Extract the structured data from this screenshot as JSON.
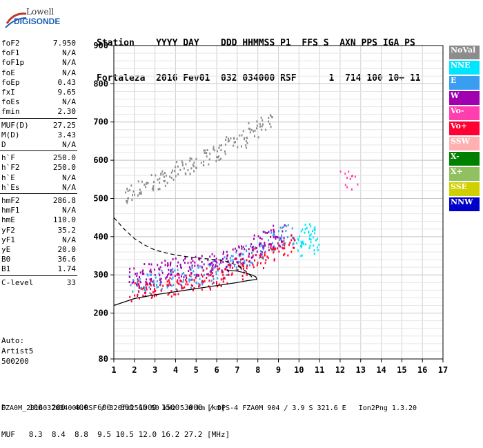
{
  "logo": {
    "line1": "Lowell",
    "line2": "DIGISONDE"
  },
  "header": {
    "labels_line": "Station    YYYY DAY    DDD HHMMSS P1  FFS S  AXN PPS IGA PS",
    "values_line": "Fortaleza  2016 Fev01  032 034000 RSF      1  714 100 10+ 11"
  },
  "params": [
    {
      "k": "foF2",
      "v": "7.950"
    },
    {
      "k": "foF1",
      "v": "N/A"
    },
    {
      "k": "foF1p",
      "v": "N/A"
    },
    {
      "k": "foE",
      "v": "N/A"
    },
    {
      "k": "foEp",
      "v": "0.43"
    },
    {
      "k": "fxI",
      "v": "9.65"
    },
    {
      "k": "foEs",
      "v": "N/A"
    },
    {
      "k": "fmin",
      "v": "2.30"
    },
    {
      "k": "MUF(D)",
      "v": "27.25"
    },
    {
      "k": "M(D)",
      "v": "3.43"
    },
    {
      "k": "D",
      "v": "N/A"
    },
    {
      "k": "h`F",
      "v": "250.0"
    },
    {
      "k": "h`F2",
      "v": "250.0"
    },
    {
      "k": "h`E",
      "v": "N/A"
    },
    {
      "k": "h`Es",
      "v": "N/A"
    },
    {
      "k": "hmF2",
      "v": "286.8"
    },
    {
      "k": "hmF1",
      "v": "N/A"
    },
    {
      "k": "hmE",
      "v": "110.0"
    },
    {
      "k": "yF2",
      "v": "35.2"
    },
    {
      "k": "yF1",
      "v": "N/A"
    },
    {
      "k": "yE",
      "v": "20.0"
    },
    {
      "k": "B0",
      "v": "36.6"
    },
    {
      "k": "B1",
      "v": "1.74"
    },
    {
      "k": "C-level",
      "v": "33"
    }
  ],
  "auto": {
    "line1": "Auto:",
    "line2": "Artist5",
    "line3": "500200"
  },
  "legend": [
    {
      "label": "NoVal",
      "color": "#8c8c8c"
    },
    {
      "label": "NNE",
      "color": "#00e5ff"
    },
    {
      "label": "E",
      "color": "#3a9ef0"
    },
    {
      "label": "W",
      "color": "#a000b0"
    },
    {
      "label": "Vo-",
      "color": "#ff3fb0"
    },
    {
      "label": "Vo+",
      "color": "#ff0030"
    },
    {
      "label": "SSW",
      "color": "#ffb0b0"
    },
    {
      "label": "X-",
      "color": "#008000"
    },
    {
      "label": "X+",
      "color": "#90c060"
    },
    {
      "label": "SSE",
      "color": "#d0d000"
    },
    {
      "label": "NNW",
      "color": "#0000c8"
    }
  ],
  "footer": {
    "line1": "D     100  200  400  600  800 1000 1500 3000 [km]",
    "line2": "MUF   8.3  8.4  8.8  9.5 10.5 12.0 16.2 27.2 [MHz]",
    "line3": "FZA0M_2016032034000.RSF / 320fx256h 50 kHz 5.0 km / DPS-4 FZA0M 904 / 3.9 S 321.6 E   Ion2Png 1.3.20"
  },
  "chart_data": {
    "type": "scatter",
    "title": "",
    "xlabel": "",
    "ylabel": "",
    "xlim": [
      1,
      17
    ],
    "ylim": [
      80,
      900
    ],
    "x_ticks": [
      1,
      2,
      3,
      4,
      5,
      6,
      7,
      8,
      9,
      10,
      11,
      12,
      13,
      14,
      15,
      16,
      17
    ],
    "y_ticks": [
      80,
      200,
      300,
      400,
      500,
      600,
      700,
      800,
      900
    ],
    "grid": true,
    "series": [
      {
        "name": "E",
        "color": "#3a9ef0",
        "x": [
          2.0,
          2.5,
          3.0,
          3.5,
          4.0,
          4.5,
          5.0,
          5.5,
          6.0,
          6.5,
          7.0,
          7.5,
          8.0,
          8.5,
          9.0,
          9.5
        ],
        "y": [
          275,
          280,
          285,
          290,
          292,
          295,
          300,
          305,
          315,
          325,
          340,
          355,
          370,
          390,
          400,
          410
        ]
      },
      {
        "name": "Vo+",
        "color": "#ff0030",
        "x": [
          2.0,
          2.5,
          3.0,
          3.5,
          4.0,
          4.5,
          5.0,
          5.5,
          6.0,
          6.5,
          7.0,
          7.5,
          8.0,
          8.5,
          9.0,
          9.5
        ],
        "y": [
          260,
          262,
          268,
          272,
          278,
          282,
          288,
          292,
          300,
          308,
          318,
          330,
          345,
          360,
          370,
          380
        ]
      },
      {
        "name": "W",
        "color": "#a000b0",
        "x": [
          2.0,
          2.5,
          3.0,
          3.5,
          4.0,
          4.5,
          5.0,
          5.5,
          6.0,
          6.5,
          7.0,
          7.5,
          8.0,
          8.5,
          9.0
        ],
        "y": [
          300,
          305,
          310,
          315,
          318,
          322,
          325,
          330,
          335,
          340,
          350,
          365,
          380,
          395,
          405
        ]
      },
      {
        "name": "NNE",
        "color": "#00e5ff",
        "x": [
          10.0,
          10.2,
          10.4,
          10.6,
          10.8
        ],
        "y": [
          380,
          395,
          410,
          400,
          385
        ]
      },
      {
        "name": "NoVal",
        "color": "#8c8c8c",
        "x": [
          1.8,
          2.4,
          3.0,
          3.6,
          4.2,
          4.8,
          5.4,
          6.0,
          6.6,
          7.2,
          7.8,
          8.4
        ],
        "y": [
          515,
          530,
          545,
          560,
          575,
          590,
          605,
          620,
          640,
          660,
          680,
          700
        ]
      },
      {
        "name": "Vo-",
        "color": "#ff3fb0",
        "x": [
          12.2,
          12.4,
          12.6
        ],
        "y": [
          560,
          550,
          545
        ]
      }
    ],
    "lines": [
      {
        "name": "profile",
        "style": "solid",
        "x": [
          1.0,
          2.0,
          3.0,
          4.0,
          5.0,
          6.0,
          6.5,
          7.0,
          7.5,
          7.8,
          7.95,
          7.9,
          7.7,
          7.4,
          7.0,
          6.5
        ],
        "y": [
          220,
          238,
          248,
          256,
          264,
          272,
          276,
          280,
          285,
          287,
          288,
          295,
          300,
          305,
          310,
          312
        ]
      },
      {
        "name": "model",
        "style": "dashed",
        "x": [
          1.0,
          1.5,
          2.0,
          2.5,
          3.0,
          3.5,
          4.0,
          4.5,
          5.0,
          5.5,
          6.0,
          6.5,
          7.0,
          7.4,
          7.6,
          7.8
        ],
        "y": [
          450,
          420,
          395,
          378,
          365,
          358,
          352,
          348,
          345,
          342,
          340,
          335,
          325,
          310,
          300,
          290
        ]
      }
    ]
  }
}
